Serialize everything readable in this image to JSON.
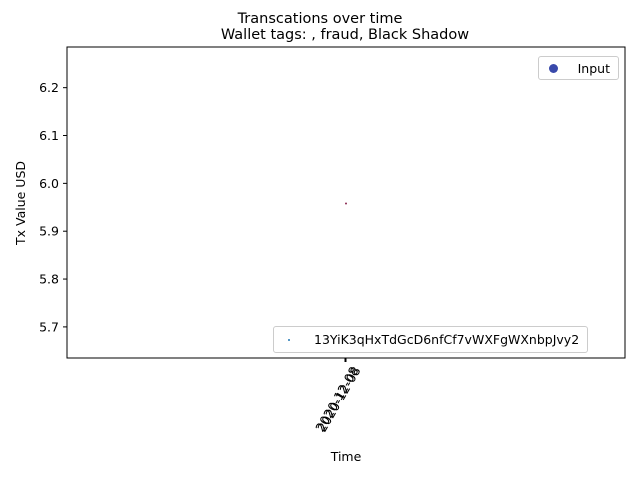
{
  "chart_data": {
    "type": "scatter",
    "suptitle": "Transcations over time",
    "title": "Wallet tags: , fraud, Black Shadow",
    "xlabel": "Time",
    "ylabel": "Tx Value USD",
    "ylim": [
      5.635,
      6.285
    ],
    "yticks": [
      5.7,
      5.8,
      5.9,
      6.0,
      6.1,
      6.2
    ],
    "ytick_labels": [
      "5.7",
      "5.8",
      "5.9",
      "6.0",
      "6.1",
      "6.2"
    ],
    "xtick_labels": [
      "2020-12-08",
      "2020-12-08"
    ],
    "xtick_rotation": 60,
    "grid": false,
    "legends": [
      {
        "placement": "top-right",
        "entries": [
          {
            "label": "Input",
            "color": "#3949ab",
            "marker": "circle"
          }
        ]
      },
      {
        "placement": "lower-right",
        "entries": [
          {
            "label": "13YiK3qHxTdGcD6nfCf7vWXFgWXnbpJvy2",
            "color": "#1f77b4",
            "marker": "point"
          }
        ]
      }
    ],
    "points": [
      {
        "x": "2020-12-08",
        "y": 5.958,
        "color": "#8b2a52"
      }
    ]
  }
}
